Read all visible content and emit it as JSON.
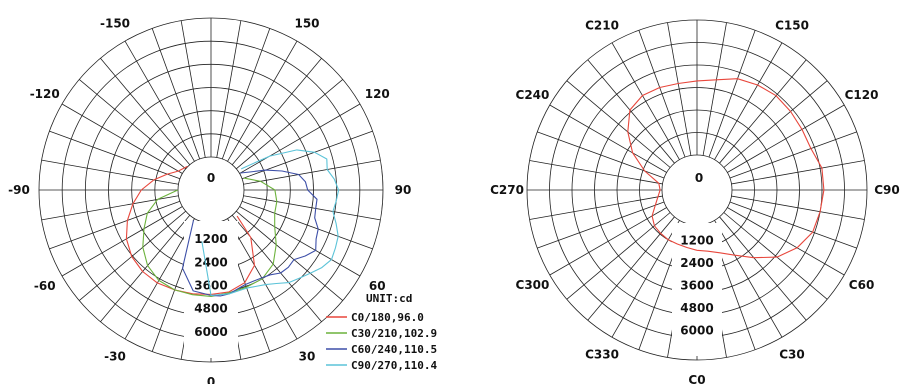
{
  "chart_data": [
    {
      "type": "polar",
      "unit_label": "UNIT:cd",
      "radial_ticks": [
        0,
        1200,
        2400,
        3600,
        4800,
        6000
      ],
      "rmax": 7200,
      "angle_labels": [
        {
          "deg": 0,
          "text": "0"
        },
        {
          "deg": 30,
          "text": "30"
        },
        {
          "deg": 60,
          "text": "60"
        },
        {
          "deg": 90,
          "text": "90"
        },
        {
          "deg": 120,
          "text": "120"
        },
        {
          "deg": 150,
          "text": "150"
        },
        {
          "deg": -30,
          "text": "-30"
        },
        {
          "deg": -60,
          "text": "-60"
        },
        {
          "deg": -90,
          "text": "-90"
        },
        {
          "deg": -120,
          "text": "-120"
        },
        {
          "deg": -150,
          "text": "-150"
        }
      ],
      "series": [
        {
          "name": "C0/180,96.0",
          "color": "#e8473c",
          "theta": [
            -135,
            -120,
            -110,
            -100,
            -90,
            -80,
            -70,
            -60,
            -50,
            -40,
            -30,
            -20,
            -10,
            0,
            10,
            20,
            30,
            40,
            45
          ],
          "r": [
            20,
            250,
            700,
            1300,
            1900,
            2400,
            2900,
            3350,
            3650,
            3800,
            3850,
            3800,
            3750,
            3700,
            3650,
            3400,
            2800,
            1500,
            200
          ]
        },
        {
          "name": "C30/210,102.9",
          "color": "#6cb23c",
          "theta": [
            -90,
            -80,
            -70,
            -60,
            -50,
            -40,
            -30,
            -20,
            -10,
            0,
            10,
            20,
            30,
            40,
            50,
            60,
            70,
            80,
            90,
            100,
            110
          ],
          "r": [
            10,
            1100,
            1800,
            2300,
            2900,
            3400,
            3700,
            3800,
            3800,
            3800,
            3700,
            3650,
            3600,
            3300,
            2700,
            2100,
            1800,
            1750,
            1600,
            900,
            100
          ]
        },
        {
          "name": "C60/240,110.5",
          "color": "#3d4fa8",
          "theta": [
            -30,
            -20,
            -10,
            0,
            5,
            10,
            15,
            20,
            25,
            30,
            35,
            40,
            45,
            50,
            55,
            60,
            65,
            70,
            75,
            80,
            85,
            90,
            95,
            100,
            105,
            110,
            115,
            120
          ],
          "r": [
            100,
            2600,
            3600,
            3750,
            3800,
            3750,
            3600,
            3500,
            3500,
            3550,
            3650,
            3900,
            3950,
            3900,
            4250,
            4550,
            4300,
            4200,
            3850,
            3800,
            3800,
            3300,
            3200,
            2900,
            2100,
            1300,
            500,
            50
          ]
        },
        {
          "name": "C90/270,110.4",
          "color": "#5bc3d8",
          "theta": [
            -10,
            0,
            10,
            20,
            30,
            35,
            40,
            45,
            50,
            55,
            60,
            65,
            70,
            75,
            80,
            85,
            90,
            95,
            100,
            105,
            110,
            115,
            120,
            125
          ],
          "r": [
            1000,
            3750,
            3750,
            3700,
            3950,
            4200,
            4550,
            4750,
            5000,
            5300,
            5500,
            5400,
            5300,
            5000,
            4700,
            4800,
            4900,
            4700,
            4400,
            4500,
            4000,
            3200,
            1800,
            200
          ]
        }
      ]
    },
    {
      "type": "polar",
      "radial_ticks": [
        0,
        1200,
        2400,
        3600,
        4800,
        6000
      ],
      "rmax": 7200,
      "angle_labels": [
        {
          "deg": 0,
          "text": "C0"
        },
        {
          "deg": 30,
          "text": "C30"
        },
        {
          "deg": 60,
          "text": "C60"
        },
        {
          "deg": 90,
          "text": "C90"
        },
        {
          "deg": 120,
          "text": "C120"
        },
        {
          "deg": 150,
          "text": "C150"
        },
        {
          "deg": 210,
          "text": "C210"
        },
        {
          "deg": 240,
          "text": "C240"
        },
        {
          "deg": 270,
          "text": "C270"
        },
        {
          "deg": 300,
          "text": "C300"
        },
        {
          "deg": 330,
          "text": "C330"
        }
      ],
      "series": [
        {
          "name": "",
          "color": "#e8473c",
          "theta": [
            0,
            10,
            20,
            30,
            40,
            50,
            60,
            70,
            80,
            90,
            100,
            110,
            120,
            130,
            140,
            150,
            160,
            170,
            180,
            190,
            200,
            210,
            220,
            230,
            240,
            250,
            260,
            270,
            280,
            290,
            300,
            310,
            320,
            330,
            340,
            350,
            360
          ],
          "r": [
            1350,
            1450,
            1700,
            2150,
            2850,
            3700,
            4300,
            4700,
            4800,
            4900,
            4900,
            4600,
            4600,
            4650,
            4700,
            4600,
            4450,
            4100,
            3950,
            3900,
            3950,
            3950,
            3700,
            2950,
            2100,
            1100,
            200,
            100,
            250,
            500,
            900,
            1100,
            1150,
            1200,
            1200,
            1250,
            1350
          ]
        }
      ]
    }
  ]
}
